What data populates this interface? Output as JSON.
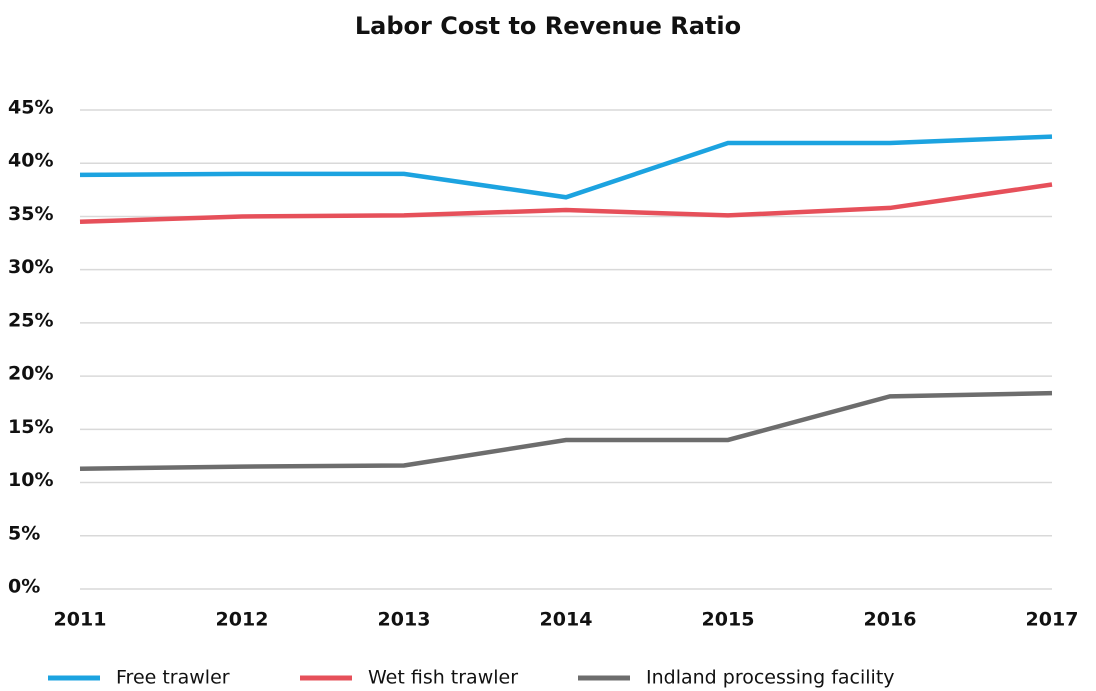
{
  "chart_data": {
    "type": "line",
    "title": "Labor Cost to Revenue Ratio",
    "categories": [
      "2011",
      "2012",
      "2013",
      "2014",
      "2015",
      "2016",
      "2017"
    ],
    "series": [
      {
        "name": "Free trawler",
        "color": "#1ca3e0",
        "values": [
          38.9,
          39.0,
          39.0,
          36.8,
          41.9,
          41.9,
          42.5
        ]
      },
      {
        "name": "Wet fish trawler",
        "color": "#e6505a",
        "values": [
          34.5,
          35.0,
          35.1,
          35.6,
          35.1,
          35.8,
          38.0
        ]
      },
      {
        "name": "Indland processing facility",
        "color": "#6d6d6d",
        "values": [
          11.3,
          11.5,
          11.6,
          14.0,
          14.0,
          18.1,
          18.4
        ]
      }
    ],
    "ylim": [
      0,
      45
    ],
    "yticks": [
      {
        "value": 0,
        "label": "0%"
      },
      {
        "value": 5,
        "label": "5%"
      },
      {
        "value": 10,
        "label": "10%"
      },
      {
        "value": 15,
        "label": "15%"
      },
      {
        "value": 20,
        "label": "20%"
      },
      {
        "value": 25,
        "label": "25%"
      },
      {
        "value": 30,
        "label": "30%"
      },
      {
        "value": 35,
        "label": "35%"
      },
      {
        "value": 40,
        "label": "40%"
      },
      {
        "value": 45,
        "label": "45%"
      }
    ],
    "grid": true,
    "legend": "bottom"
  }
}
